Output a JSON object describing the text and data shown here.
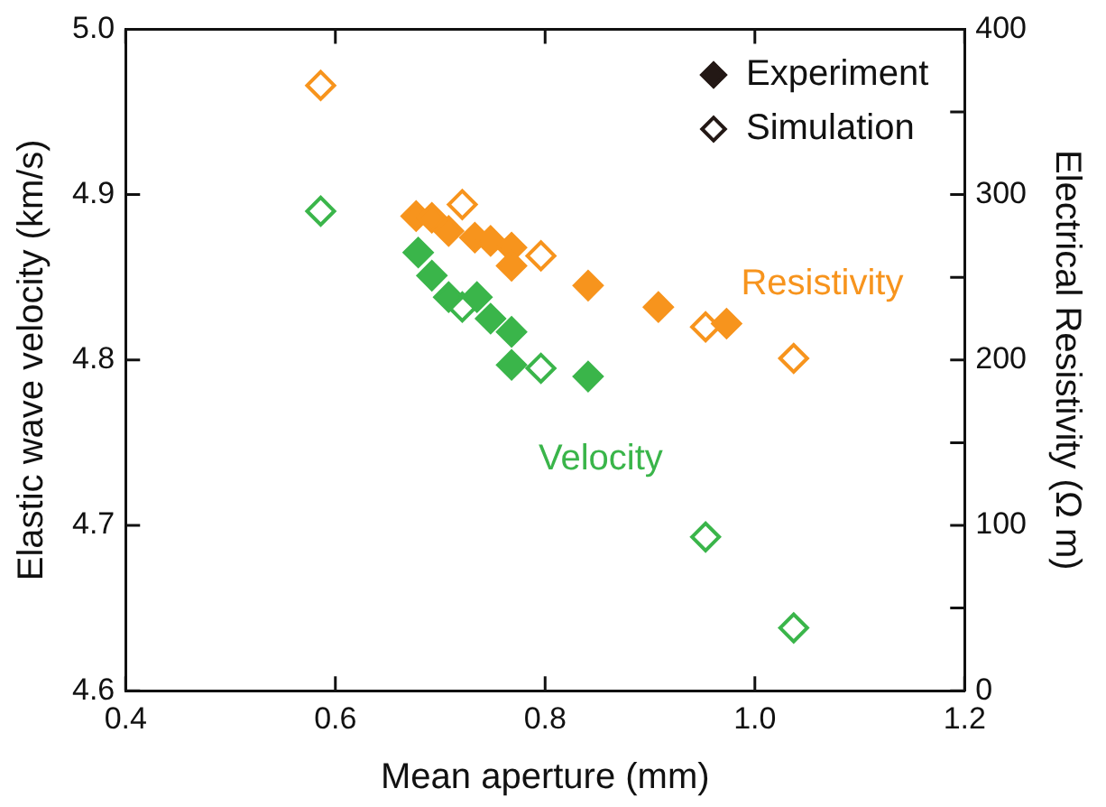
{
  "chart_data": {
    "type": "scatter",
    "xlabel": "Mean aperture (mm)",
    "ylabel": "Elastic wave velocity (km/s)",
    "y2label": "Electrical Resistivity (Ω m)",
    "xlim": [
      0.4,
      1.2
    ],
    "xticks": [
      0.4,
      0.6,
      0.8,
      {
        "value": 1.0,
        "label": "1.0"
      },
      1.2
    ],
    "ylim": [
      4.6,
      5.0
    ],
    "yticks": [
      4.6,
      4.7,
      4.8,
      4.9,
      {
        "value": 5.0,
        "label": "5.0"
      }
    ],
    "y2lim": [
      0,
      400
    ],
    "y2ticks": [
      0,
      {
        "value": 50,
        "label": null
      },
      100,
      {
        "value": 150,
        "label": null
      },
      200,
      {
        "value": 250,
        "label": null
      },
      300,
      {
        "value": 350,
        "label": null
      },
      400
    ],
    "marker": "diamond",
    "grid": false,
    "series": [
      {
        "name": "Resistivity",
        "color": "#f7941d",
        "axis": "y2",
        "x": [
          0.677,
          0.692,
          0.708,
          0.733,
          0.748,
          0.768,
          0.768,
          0.841,
          0.908,
          0.973
        ],
        "values": [
          287,
          286,
          278,
          274,
          272,
          268,
          257,
          245,
          232,
          222
        ]
      },
      {
        "color": "#f7941d",
        "axis": "y2",
        "x": [
          0.586,
          0.721,
          0.796,
          0.953,
          1.037
        ],
        "values": [
          366,
          294,
          263,
          220,
          201
        ]
      },
      {
        "name": "Velocity",
        "color": "#3ab54a",
        "x": [
          0.679,
          0.692,
          0.708,
          0.735,
          0.748,
          0.768,
          0.768,
          0.841
        ],
        "values": [
          4.865,
          4.851,
          4.838,
          4.838,
          4.825,
          4.817,
          4.797,
          4.79
        ]
      },
      {
        "color": "#3ab54a",
        "x": [
          0.586,
          0.721,
          0.796,
          0.953,
          1.037
        ],
        "values": [
          4.89,
          4.832,
          4.795,
          4.693,
          4.638
        ]
      }
    ],
    "annotations": [
      "Experiment",
      "Simulation"
    ]
  }
}
